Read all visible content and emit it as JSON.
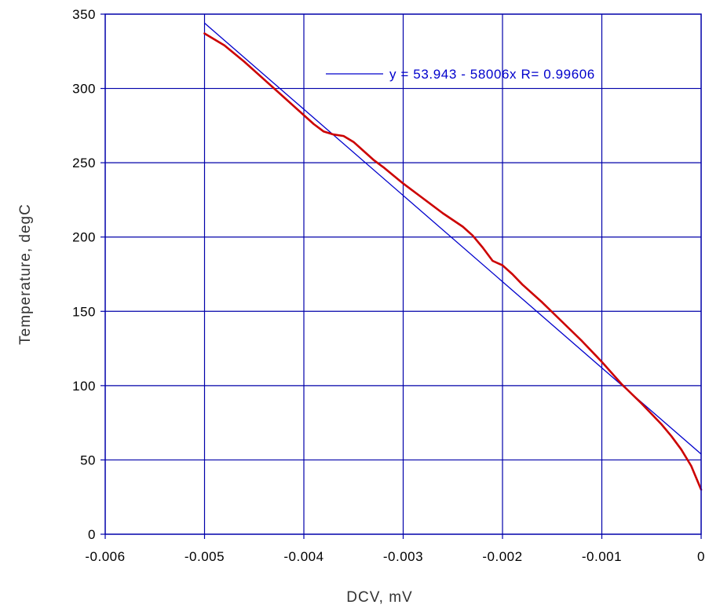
{
  "chart_data": {
    "type": "line",
    "title": "",
    "xlabel": "DCV, mV",
    "ylabel": "Temperature, degC",
    "xlim": [
      -0.006,
      0
    ],
    "ylim": [
      0,
      350
    ],
    "x_ticks": [
      -0.006,
      -0.005,
      -0.004,
      -0.003,
      -0.002,
      -0.001,
      0
    ],
    "x_tick_labels": [
      "-0.006",
      "-0.005",
      "-0.004",
      "-0.003",
      "-0.002",
      "-0.001",
      "0"
    ],
    "y_ticks": [
      0,
      50,
      100,
      150,
      200,
      250,
      300,
      350
    ],
    "y_tick_labels": [
      "0",
      "50",
      "100",
      "150",
      "200",
      "250",
      "300",
      "350"
    ],
    "grid": true,
    "legend_placement": "top-right",
    "colors": {
      "frame": "#0000aa",
      "grid": "#0000aa",
      "data": "#cc0000",
      "fit": "#0000cc"
    },
    "series": [
      {
        "points": [
          [
            -0.005,
            337
          ],
          [
            -0.0048,
            329
          ],
          [
            -0.0046,
            318
          ],
          [
            -0.0044,
            306
          ],
          [
            -0.0042,
            294
          ],
          [
            -0.004,
            282
          ],
          [
            -0.0039,
            276
          ],
          [
            -0.0038,
            271
          ],
          [
            -0.0037,
            269
          ],
          [
            -0.0036,
            268
          ],
          [
            -0.0035,
            264
          ],
          [
            -0.0034,
            258
          ],
          [
            -0.0033,
            252
          ],
          [
            -0.0032,
            247
          ],
          [
            -0.003,
            236
          ],
          [
            -0.0028,
            226
          ],
          [
            -0.0026,
            216
          ],
          [
            -0.0024,
            207
          ],
          [
            -0.0023,
            201
          ],
          [
            -0.0022,
            193
          ],
          [
            -0.0021,
            184
          ],
          [
            -0.002,
            181
          ],
          [
            -0.0019,
            175
          ],
          [
            -0.0018,
            168
          ],
          [
            -0.0016,
            156
          ],
          [
            -0.0014,
            143
          ],
          [
            -0.0012,
            130
          ],
          [
            -0.001,
            116
          ],
          [
            -0.0008,
            101
          ],
          [
            -0.0006,
            88
          ],
          [
            -0.0004,
            74
          ],
          [
            -0.0003,
            66
          ],
          [
            -0.0002,
            57
          ],
          [
            -0.0001,
            46
          ],
          [
            0,
            30
          ]
        ]
      },
      {
        "label": "y = 53.943 - 58006x   R= 0.99606",
        "fit": {
          "intercept": 53.943,
          "slope": -58006,
          "r": 0.99606,
          "x_range": [
            -0.005,
            0
          ]
        }
      }
    ]
  }
}
